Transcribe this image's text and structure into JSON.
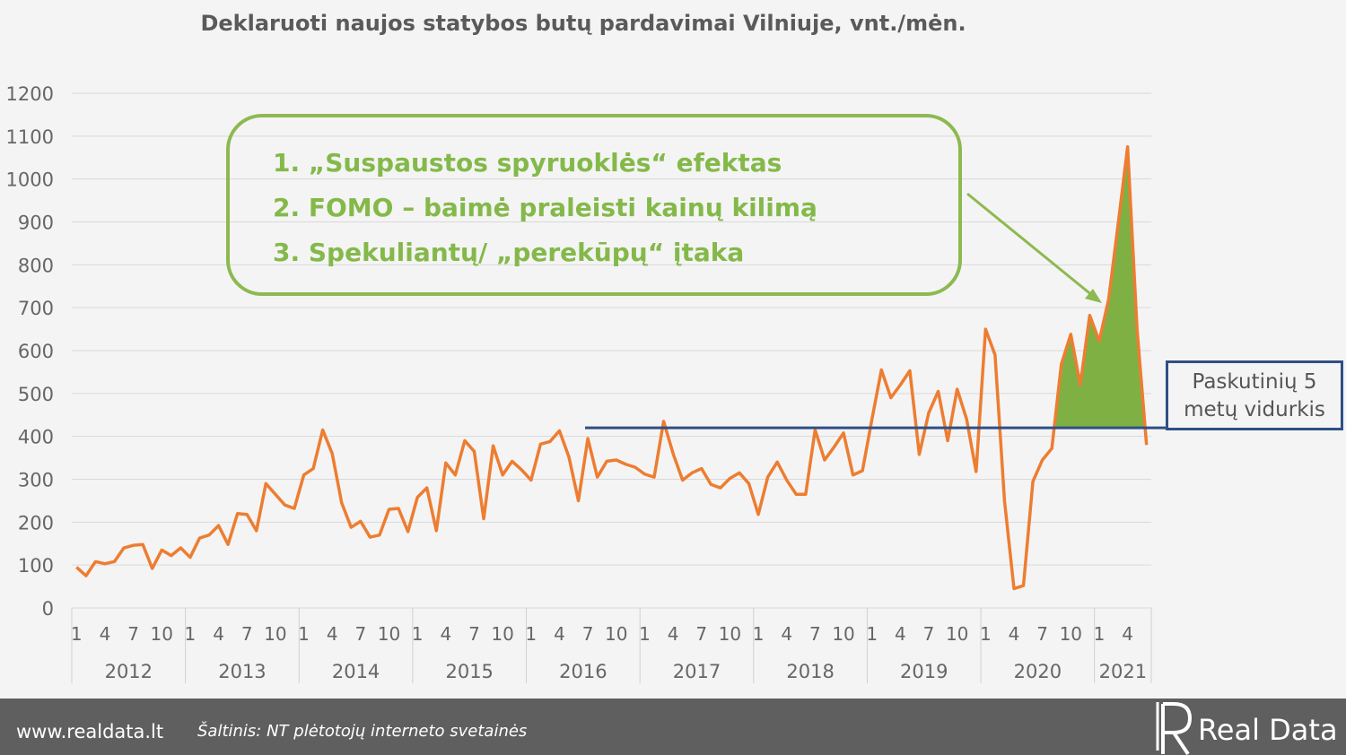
{
  "title": "Deklaruoti naujos statybos butų pardavimai Vilniuje, vnt./mėn.",
  "callout": {
    "lines": [
      "1. „Suspaustos spyruoklės“ efektas",
      "2. FOMO – baimė praleisti kainų kilimą",
      "3. Spekuliantų/ „perekūpų“ įtaka"
    ]
  },
  "average_box": {
    "line1": "Paskutinių 5",
    "line2": "metų vidurkis"
  },
  "footer": {
    "site": "www.realdata.lt",
    "source": "Šaltinis: NT plėtotojų interneto svetainės",
    "logo": "Real Data"
  },
  "colors": {
    "line": "#ed7d31",
    "fill": "#7fb044",
    "average": "#2f4f86",
    "callout": "#8db950"
  },
  "chart_data": {
    "type": "line",
    "y_ticks": [
      "0",
      "100",
      "200",
      "300",
      "400",
      "500",
      "600",
      "700",
      "800",
      "900",
      "1000",
      "1100",
      "1200"
    ],
    "ylim": [
      0,
      1200
    ],
    "month_ticks": [
      "1",
      "4",
      "7",
      "10"
    ],
    "years": [
      "2012",
      "2013",
      "2014",
      "2015",
      "2016",
      "2017",
      "2018",
      "2019",
      "2020",
      "2021"
    ],
    "average": 420,
    "series": [
      {
        "values": [
          95,
          75,
          108,
          103,
          108,
          140,
          146,
          148,
          92,
          135,
          122,
          140,
          118,
          163,
          170,
          192,
          148,
          220,
          218,
          180,
          290,
          265,
          240,
          232,
          310,
          325,
          415,
          360,
          245,
          188,
          202,
          165,
          170,
          230,
          232,
          178,
          258,
          280,
          180,
          338,
          310,
          390,
          365,
          208,
          378,
          310,
          342,
          322,
          298,
          382,
          388,
          413,
          352,
          250,
          395,
          305,
          342,
          345,
          335,
          328,
          312,
          305,
          435,
          360,
          298,
          315,
          325,
          288,
          280,
          302,
          315,
          290,
          218,
          305,
          340,
          298,
          265,
          265,
          415,
          345,
          375,
          408,
          310,
          320,
          440,
          555,
          490,
          520,
          553,
          358,
          455,
          505,
          390,
          510,
          440,
          318,
          650,
          590,
          250,
          45,
          52,
          295,
          345,
          372,
          568,
          638,
          520,
          682,
          622,
          720,
          895,
          1075,
          650,
          380
        ]
      }
    ]
  }
}
